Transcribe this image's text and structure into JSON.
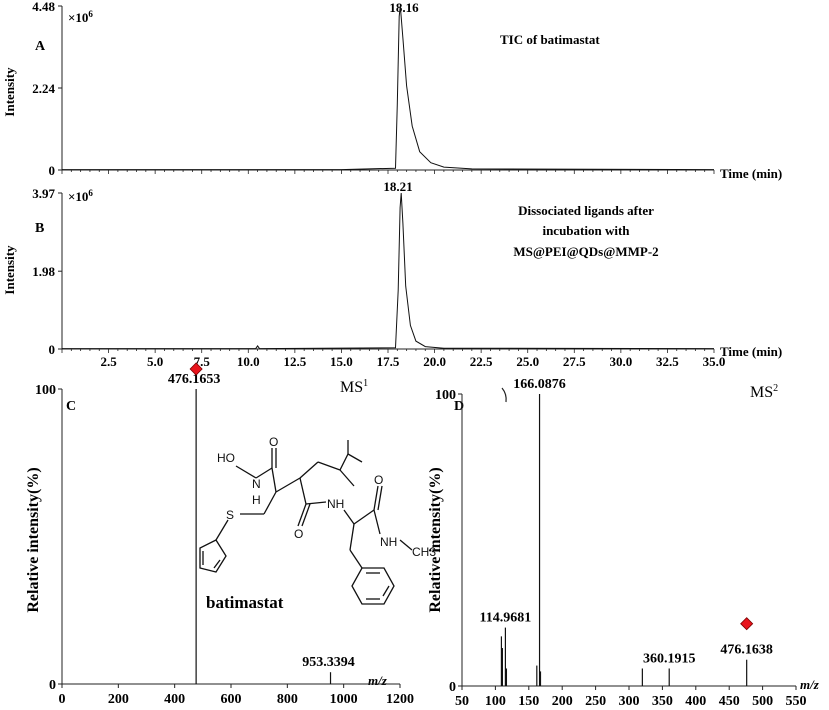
{
  "chart_data": [
    {
      "panel": "A",
      "type": "line",
      "title": "TIC of batimastat",
      "ylabel": "Intensity",
      "xlabel": "Time (min)",
      "y_exponent_label": "×10",
      "y_exponent_power": "6",
      "yticks": [
        "0",
        "2.24",
        "4.48"
      ],
      "ylim": [
        0,
        4.48
      ],
      "xlim": [
        0,
        35
      ],
      "peak_label": "18.16",
      "series": [
        {
          "x": [
            0,
            15,
            17.9,
            18.0,
            18.1,
            18.16,
            18.3,
            18.5,
            18.8,
            19.2,
            19.8,
            20.5,
            22,
            35
          ],
          "y": [
            0.01,
            0.01,
            0.05,
            1.8,
            4.2,
            4.48,
            3.6,
            2.3,
            1.2,
            0.5,
            0.2,
            0.08,
            0.03,
            0.01
          ]
        }
      ]
    },
    {
      "panel": "B",
      "type": "line",
      "title": "Dissociated ligands after incubation with MS@PEI@QDs@MMP-2",
      "title_lines": [
        "Dissociated ligands after",
        "incubation with",
        "MS@PEI@QDs@MMP-2"
      ],
      "ylabel": "Intensity",
      "xlabel": "Time (min)",
      "y_exponent_label": "×10",
      "y_exponent_power": "6",
      "yticks": [
        "0",
        "1.98",
        "3.97"
      ],
      "ylim": [
        0,
        3.97
      ],
      "xlim": [
        0,
        35
      ],
      "xticks": [
        "2.5",
        "5.0",
        "7.5",
        "10.0",
        "12.5",
        "15.0",
        "17.5",
        "20.0",
        "22.5",
        "25.0",
        "27.5",
        "30.0",
        "32.5",
        "35.0"
      ],
      "peak_label": "18.21",
      "series": [
        {
          "x": [
            0,
            10.4,
            10.5,
            10.6,
            17.9,
            18.05,
            18.15,
            18.21,
            18.3,
            18.45,
            18.7,
            19.0,
            19.5,
            20.5,
            35
          ],
          "y": [
            0.01,
            0.01,
            0.08,
            0.01,
            0.03,
            1.5,
            3.6,
            3.97,
            3.2,
            1.6,
            0.6,
            0.2,
            0.06,
            0.02,
            0.01
          ]
        }
      ]
    },
    {
      "panel": "C",
      "type": "bar",
      "title": "MS",
      "title_sup": "1",
      "ylabel": "Relative intensity(%)",
      "xlabel": "m/z",
      "ylim": [
        0,
        100
      ],
      "xlim": [
        0,
        1200
      ],
      "xticks": [
        "0",
        "200",
        "400",
        "600",
        "800",
        "1000",
        "1200"
      ],
      "yticks": [
        "0",
        "100"
      ],
      "peaks": [
        {
          "mz": 476.1653,
          "intensity": 100,
          "label": "476.1653"
        },
        {
          "mz": 953.3394,
          "intensity": 4,
          "label": "953.3394"
        }
      ],
      "marker": {
        "mz": 476.1653,
        "color": "#e8141c"
      },
      "compound_label": "batimastat"
    },
    {
      "panel": "D",
      "type": "bar",
      "title": "MS",
      "title_sup": "2",
      "ylabel": "Relative intensity(%)",
      "xlabel": "m/z",
      "ylim": [
        0,
        100
      ],
      "xlim": [
        50,
        550
      ],
      "xticks": [
        "50",
        "100",
        "150",
        "200",
        "250",
        "300",
        "350",
        "400",
        "450",
        "500",
        "550"
      ],
      "yticks": [
        "0",
        "100"
      ],
      "peaks": [
        {
          "mz": 109.0,
          "intensity": 17,
          "label": ""
        },
        {
          "mz": 110.5,
          "intensity": 13,
          "label": ""
        },
        {
          "mz": 114.9681,
          "intensity": 20,
          "label": "114.9681"
        },
        {
          "mz": 116.5,
          "intensity": 6,
          "label": ""
        },
        {
          "mz": 162.0,
          "intensity": 7,
          "label": ""
        },
        {
          "mz": 166.0876,
          "intensity": 100,
          "label": "166.0876"
        },
        {
          "mz": 167.5,
          "intensity": 5,
          "label": ""
        },
        {
          "mz": 320.0,
          "intensity": 6,
          "label": ""
        },
        {
          "mz": 360.1915,
          "intensity": 6,
          "label": "360.1915"
        },
        {
          "mz": 476.1638,
          "intensity": 9,
          "label": "476.1638"
        }
      ],
      "marker": {
        "mz": 476.1638,
        "color": "#e8141c"
      }
    }
  ],
  "structure": {
    "atoms": [
      "HO",
      "N",
      "H",
      "O",
      "S",
      "O",
      "NH",
      "O",
      "NH",
      "CH3"
    ]
  }
}
